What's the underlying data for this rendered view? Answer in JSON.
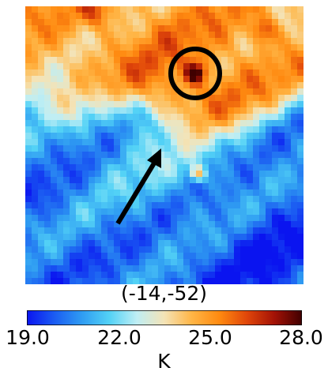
{
  "chart_data": {
    "type": "heatmap",
    "coordinate_label": "(-14,-52)",
    "colorbar": {
      "unit": "K",
      "min": 19.0,
      "max": 28.0,
      "ticks": [
        19.0,
        22.0,
        25.0,
        28.0
      ],
      "tick_labels": [
        "19.0",
        "22.0",
        "25.0",
        "28.0"
      ],
      "colormap": [
        "#0a14f0",
        "#1b5cf2",
        "#2f9cf2",
        "#53d2f6",
        "#bfeef4",
        "#f4e3b6",
        "#ffb545",
        "#ff8a10",
        "#e0460a",
        "#a31206",
        "#400000"
      ]
    },
    "field_description_values": {
      "background_low_k": 20.2,
      "top_band_k": 24.5,
      "hotspot_circled_k": 27.5,
      "hotspot_small_k": 25.5,
      "hotspot_corner_k": 26.0
    },
    "annotations": {
      "circle": "hotspot marker",
      "arrow": "pointer arrow"
    }
  }
}
